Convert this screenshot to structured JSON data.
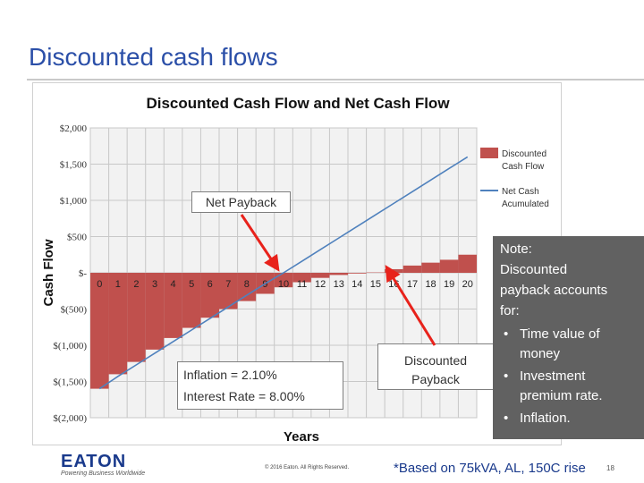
{
  "slide": {
    "title": "Discounted cash flows",
    "footnote": "*Based on 75kVA, AL, 150C rise",
    "page_number": "18",
    "copyright": "© 2016 Eaton. All Rights Reserved.",
    "logo": {
      "name": "EATON",
      "tagline": "Powering Business Worldwide"
    }
  },
  "callouts": {
    "net_payback": "Net Payback",
    "discounted_payback": [
      "Discounted",
      "Payback"
    ],
    "params": [
      "Inflation = 2.10%",
      "Interest Rate = 8.00%"
    ]
  },
  "note": {
    "heading": "Note:",
    "body": [
      "Discounted",
      "payback accounts",
      "for:"
    ],
    "bullets": [
      [
        "Time value of",
        "money"
      ],
      [
        "Investment",
        "premium rate."
      ],
      [
        "Inflation."
      ]
    ]
  },
  "colors": {
    "bar": "#c0504d",
    "line": "#4f81bd",
    "arrow": "#e8221b",
    "title": "#2b4fa8",
    "note_bg": "#616161"
  },
  "chart_data": {
    "type": "bar",
    "title": "Discounted Cash Flow and Net Cash Flow",
    "xlabel": "Years",
    "ylabel": "Cash Flow",
    "categories": [
      "0",
      "1",
      "2",
      "3",
      "4",
      "5",
      "6",
      "7",
      "8",
      "9",
      "10",
      "11",
      "12",
      "13",
      "14",
      "15",
      "16",
      "17",
      "18",
      "19",
      "20"
    ],
    "x_tick_labels": [
      "0",
      "1",
      "2",
      "3",
      "4",
      "5",
      "6",
      "7",
      "8",
      "9",
      "10",
      "11",
      "12",
      "13",
      "14",
      "15",
      "16",
      "17",
      "18",
      "19",
      "20"
    ],
    "y_ticks": [
      2000,
      1500,
      1000,
      500,
      0,
      -500,
      -1000,
      -1500,
      -2000
    ],
    "y_tick_labels": [
      "$2,000",
      "$1,500",
      "$1,000",
      "$500",
      "$-",
      "$(500)",
      "$(1,000)",
      "$(1,500)",
      "$(2,000)"
    ],
    "ylim": [
      -2000,
      2000
    ],
    "grid": true,
    "legend_position": "right",
    "series": [
      {
        "name": "Discounted Cash Flow",
        "type": "bar",
        "values": [
          -1600,
          -1400,
          -1230,
          -1060,
          -900,
          -760,
          -620,
          -500,
          -390,
          -290,
          -200,
          -130,
          -70,
          -30,
          -10,
          5,
          50,
          100,
          140,
          180,
          250
        ]
      },
      {
        "name": "Net Cash Acumulated",
        "type": "line",
        "values": [
          -1600,
          -1430,
          -1270,
          -1110,
          -950,
          -790,
          -630,
          -470,
          -310,
          -150,
          0,
          160,
          320,
          480,
          640,
          800,
          960,
          1120,
          1280,
          1440,
          1600
        ]
      }
    ]
  }
}
